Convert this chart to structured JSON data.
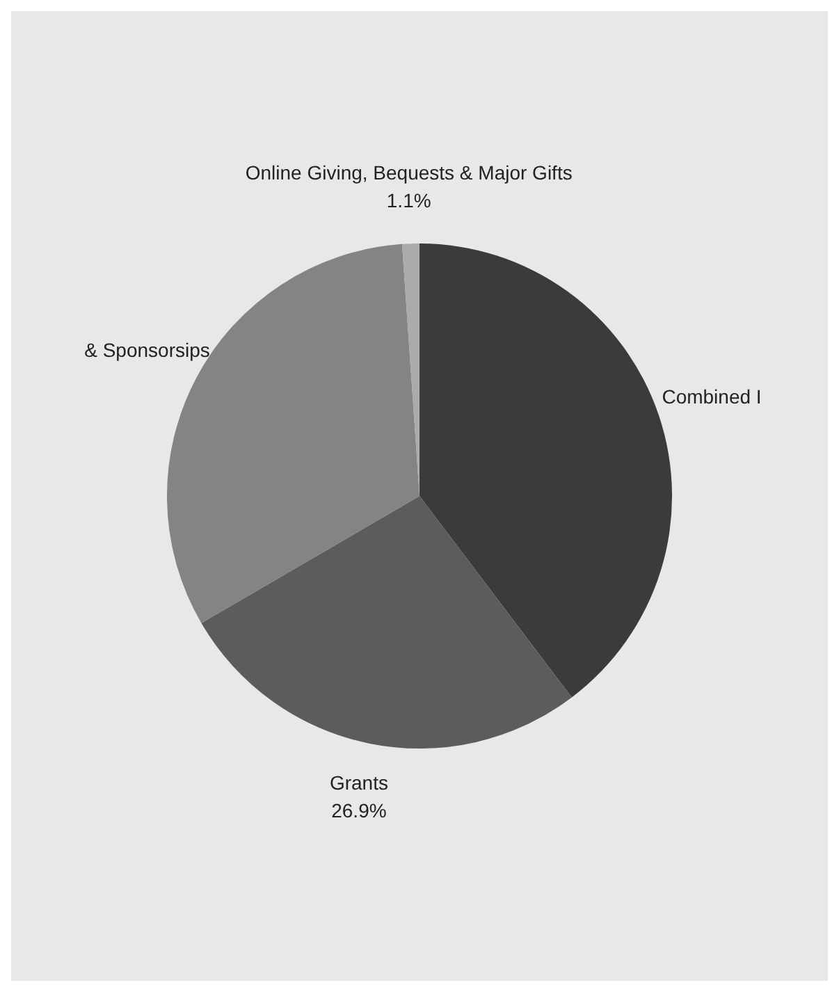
{
  "chart_data": {
    "type": "pie",
    "categories": [
      "Combined I",
      "Grants",
      "& Sponsorsips",
      "Online Giving, Bequests & Major Gifts"
    ],
    "values": [
      39.7,
      26.9,
      32.3,
      1.1
    ],
    "colors": [
      "#3b3b3b",
      "#5c5c5c",
      "#848484",
      "#ababab"
    ],
    "value_labels": [
      null,
      "26.9%",
      null,
      "1.1%"
    ],
    "legend": false
  }
}
